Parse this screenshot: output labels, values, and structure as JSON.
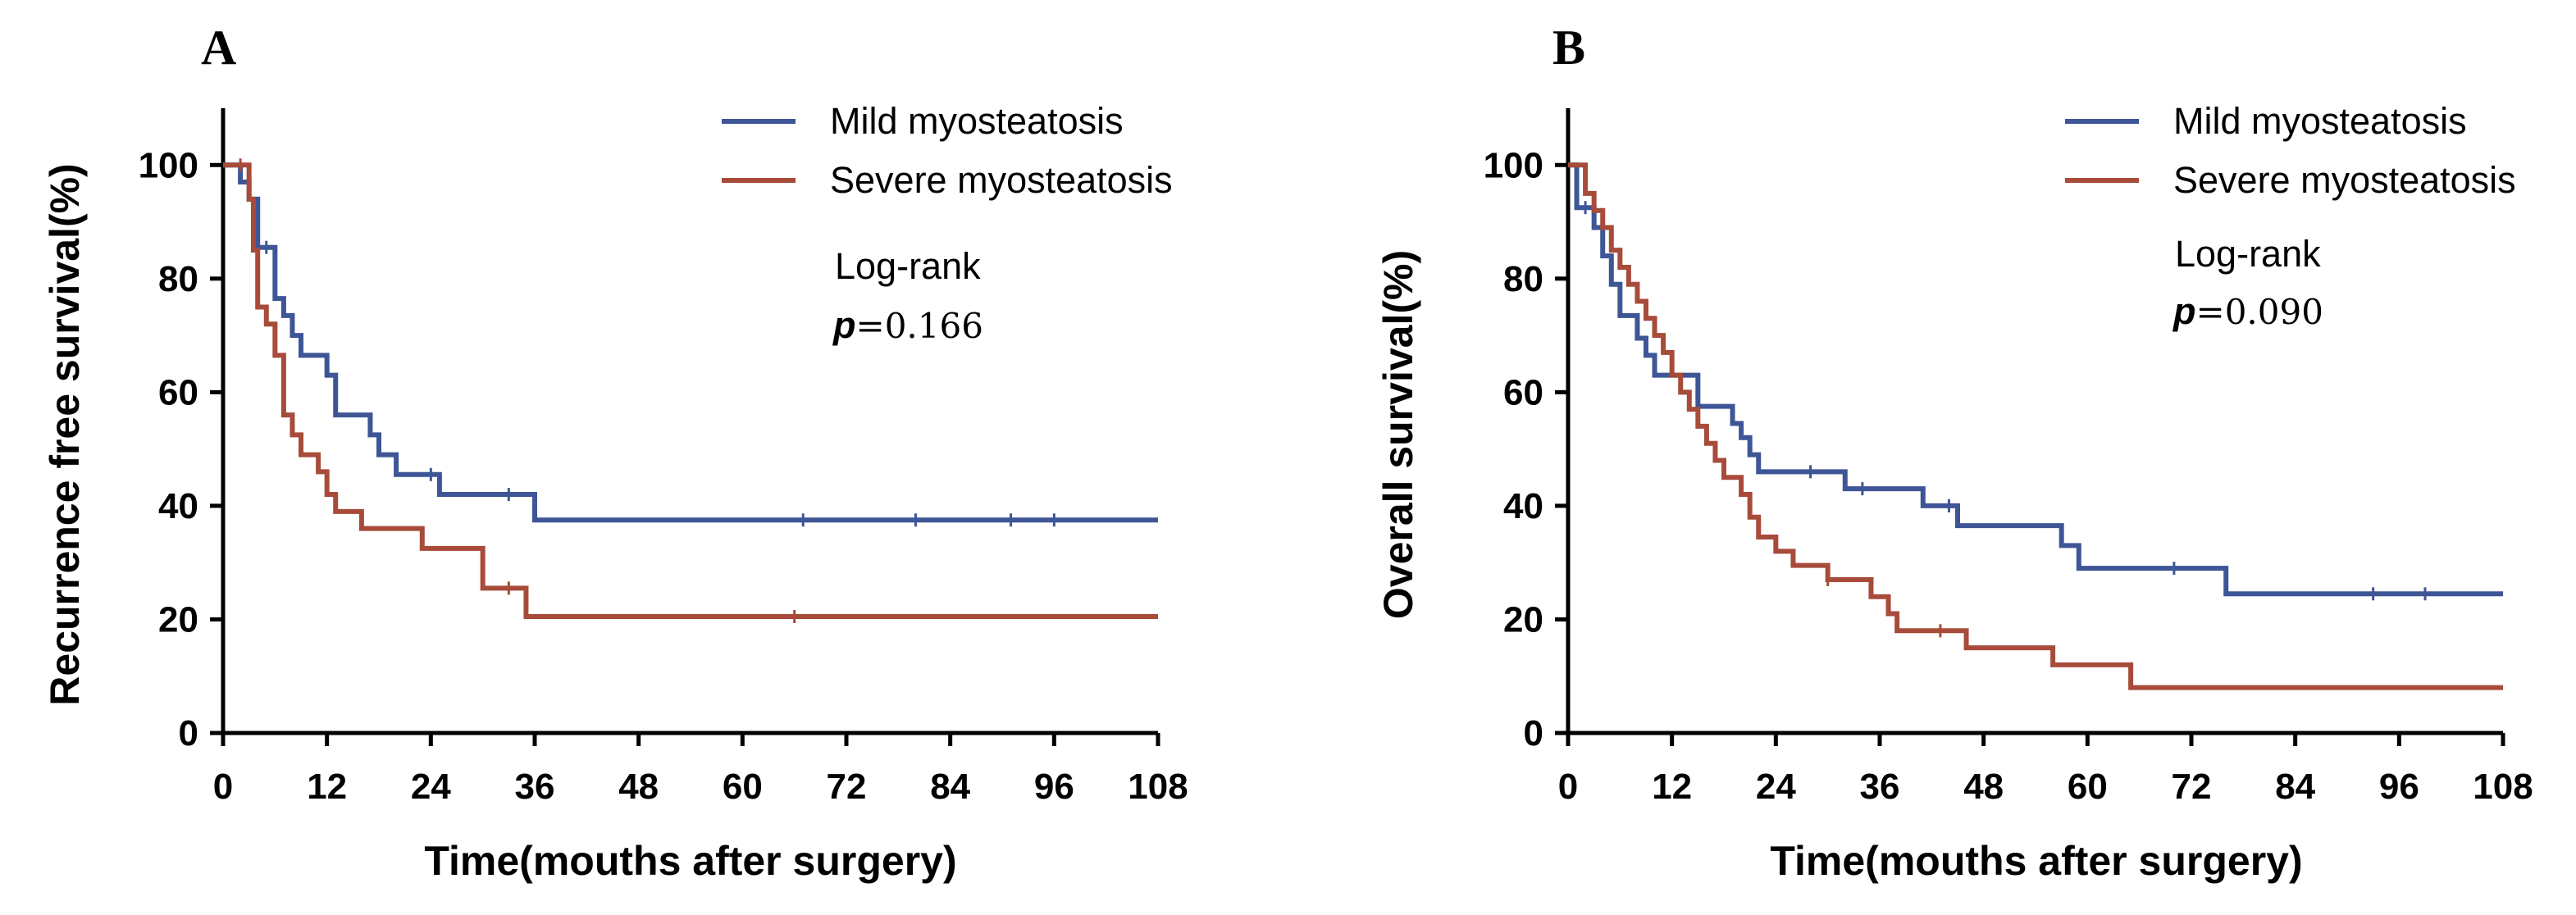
{
  "colors": {
    "mild": "#3e5596",
    "severe": "#a74b3a",
    "axis": "#000000"
  },
  "chart_data": [
    {
      "panel_label": "A",
      "type": "line",
      "subtype": "kaplan-meier",
      "ylabel": "Recurrence free survival(%)",
      "xlabel": "Time(mouths after surgery)",
      "xlim": [
        0,
        108
      ],
      "ylim": [
        0,
        110
      ],
      "xticks": [
        0,
        12,
        24,
        36,
        48,
        60,
        72,
        84,
        96,
        108
      ],
      "yticks": [
        0,
        20,
        40,
        60,
        80,
        100
      ],
      "xtick_labels": [
        "0",
        "12",
        "24",
        "36",
        "48",
        "60",
        "72",
        "84",
        "96",
        "108"
      ],
      "ytick_labels": [
        "0",
        "20",
        "40",
        "60",
        "80",
        "100"
      ],
      "stat_label": "Log-rank",
      "p_symbol": "p",
      "p_value": "=0.166",
      "series": [
        {
          "name": "Mild myosteatosis",
          "color": "#3e5596",
          "steps": [
            [
              0,
              100
            ],
            [
              2,
              97
            ],
            [
              3,
              94
            ],
            [
              4,
              85.5
            ],
            [
              6,
              76.5
            ],
            [
              7,
              73.5
            ],
            [
              8,
              70
            ],
            [
              9,
              66.5
            ],
            [
              12,
              63
            ],
            [
              13,
              56
            ],
            [
              17,
              52.5
            ],
            [
              18,
              49
            ],
            [
              20,
              45.5
            ],
            [
              25,
              42
            ],
            [
              36,
              37.5
            ],
            [
              108,
              37.5
            ]
          ],
          "censored": [
            [
              5,
              85.5
            ],
            [
              24,
              45.5
            ],
            [
              33,
              42
            ],
            [
              67,
              37.5
            ],
            [
              80,
              37.5
            ],
            [
              91,
              37.5
            ],
            [
              96,
              37.5
            ]
          ]
        },
        {
          "name": "Severe myosteatosis",
          "color": "#a74b3a",
          "steps": [
            [
              0,
              100
            ],
            [
              3,
              94
            ],
            [
              3.5,
              85
            ],
            [
              4,
              75
            ],
            [
              5,
              72
            ],
            [
              6,
              66.5
            ],
            [
              7,
              56
            ],
            [
              8,
              52.5
            ],
            [
              9,
              49
            ],
            [
              11,
              46
            ],
            [
              12,
              42
            ],
            [
              13,
              39
            ],
            [
              16,
              36
            ],
            [
              23,
              32.5
            ],
            [
              30,
              25.5
            ],
            [
              35,
              20.5
            ],
            [
              108,
              20.5
            ]
          ],
          "censored": [
            [
              2,
              100
            ],
            [
              33,
              25.5
            ],
            [
              66,
              20.5
            ]
          ]
        }
      ]
    },
    {
      "panel_label": "B",
      "type": "line",
      "subtype": "kaplan-meier",
      "ylabel": "Overall survival(%)",
      "xlabel": "Time(mouths after surgery)",
      "xlim": [
        0,
        108
      ],
      "ylim": [
        0,
        110
      ],
      "xticks": [
        0,
        12,
        24,
        36,
        48,
        60,
        72,
        84,
        96,
        108
      ],
      "yticks": [
        0,
        20,
        40,
        60,
        80,
        100
      ],
      "xtick_labels": [
        "0",
        "12",
        "24",
        "36",
        "48",
        "60",
        "72",
        "84",
        "96",
        "108"
      ],
      "ytick_labels": [
        "0",
        "20",
        "40",
        "60",
        "80",
        "100"
      ],
      "stat_label": "Log-rank",
      "p_symbol": "p",
      "p_value": "=0.090",
      "series": [
        {
          "name": "Mild myosteatosis",
          "color": "#3e5596",
          "steps": [
            [
              0,
              100
            ],
            [
              1,
              92.5
            ],
            [
              3,
              89
            ],
            [
              4,
              84
            ],
            [
              5,
              79
            ],
            [
              6,
              73.5
            ],
            [
              8,
              69.5
            ],
            [
              9,
              66.5
            ],
            [
              10,
              63
            ],
            [
              15,
              57.5
            ],
            [
              19,
              54.5
            ],
            [
              20,
              52
            ],
            [
              21,
              49
            ],
            [
              22,
              46
            ],
            [
              32,
              43
            ],
            [
              41,
              40
            ],
            [
              45,
              36.5
            ],
            [
              57,
              33
            ],
            [
              59,
              29
            ],
            [
              76,
              24.5
            ],
            [
              108,
              24.5
            ]
          ],
          "censored": [
            [
              2,
              92.5
            ],
            [
              28,
              46
            ],
            [
              34,
              43
            ],
            [
              44,
              40
            ],
            [
              70,
              29
            ],
            [
              93,
              24.5
            ],
            [
              99,
              24.5
            ]
          ]
        },
        {
          "name": "Severe myosteatosis",
          "color": "#a74b3a",
          "steps": [
            [
              0,
              100
            ],
            [
              2,
              95
            ],
            [
              3,
              92
            ],
            [
              4,
              89
            ],
            [
              5,
              85
            ],
            [
              6,
              82
            ],
            [
              7,
              79
            ],
            [
              8,
              76
            ],
            [
              9,
              73
            ],
            [
              10,
              70
            ],
            [
              11,
              67
            ],
            [
              12,
              63
            ],
            [
              13,
              60
            ],
            [
              14,
              57
            ],
            [
              15,
              54
            ],
            [
              16,
              51
            ],
            [
              17,
              48
            ],
            [
              18,
              45
            ],
            [
              20,
              42
            ],
            [
              21,
              38
            ],
            [
              22,
              34.5
            ],
            [
              24,
              32
            ],
            [
              26,
              29.5
            ],
            [
              30,
              27
            ],
            [
              35,
              24
            ],
            [
              37,
              21
            ],
            [
              38,
              18
            ],
            [
              46,
              15
            ],
            [
              56,
              12
            ],
            [
              65,
              8
            ],
            [
              108,
              8
            ]
          ],
          "censored": [
            [
              30,
              27
            ],
            [
              43,
              18
            ]
          ]
        }
      ]
    }
  ]
}
